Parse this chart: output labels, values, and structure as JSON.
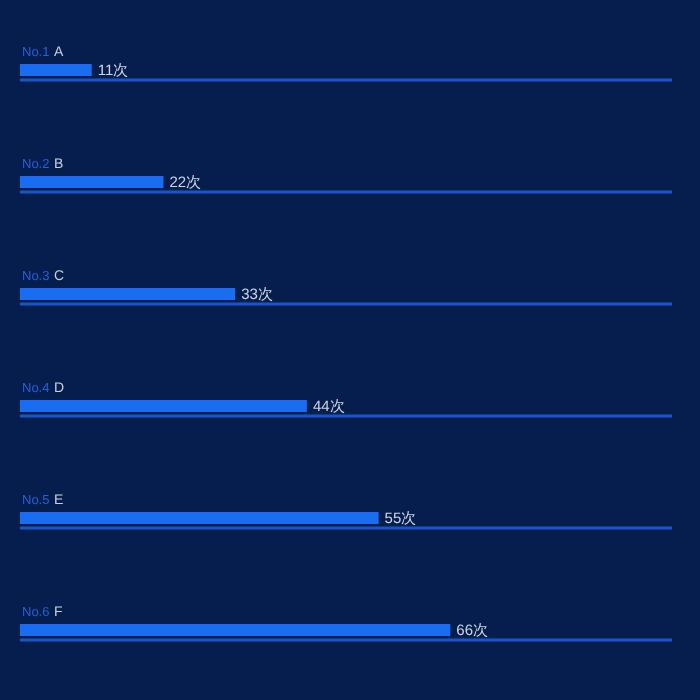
{
  "chart_data": {
    "type": "bar",
    "orientation": "horizontal",
    "categories": [
      "A",
      "B",
      "C",
      "D",
      "E",
      "F"
    ],
    "series": [
      {
        "color": "#1a6cf0",
        "values": [
          11,
          22,
          33,
          44,
          55,
          66
        ],
        "value_labels": [
          "11次",
          "22次",
          "33次",
          "44次",
          "55次",
          "66次"
        ]
      },
      {
        "type": "bar",
        "color": "#1656c8",
        "values": [
          100,
          100,
          100,
          100,
          100,
          100
        ]
      }
    ],
    "annotations": [
      "No.1",
      "No.2",
      "No.3",
      "No.4",
      "No.5",
      "No.6"
    ]
  }
}
